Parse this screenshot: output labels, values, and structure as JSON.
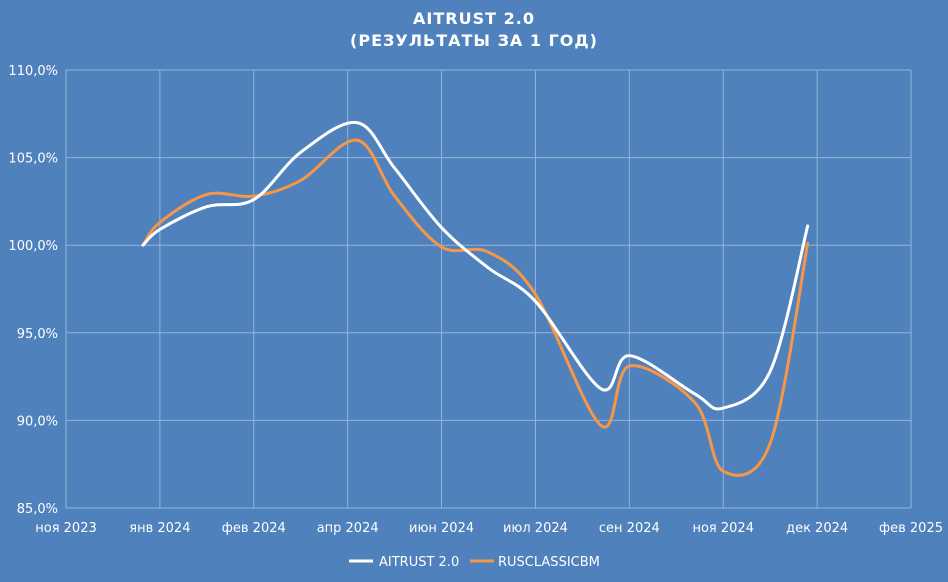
{
  "chart_data": {
    "type": "line",
    "title": "AITRUST 2.0",
    "subtitle": "(РЕЗУЛЬТАТЫ ЗА 1 ГОД)",
    "xlabel": "",
    "ylabel": "",
    "grid": true,
    "legend_position": "bottom",
    "ylim": [
      85,
      110
    ],
    "yticks": [
      "85,0%",
      "90,0%",
      "95,0%",
      "100,0%",
      "105,0%",
      "110,0%"
    ],
    "xticks": [
      "ноя 2023",
      "янв 2024",
      "фев 2024",
      "апр 2024",
      "июн 2024",
      "июл 2024",
      "сен 2024",
      "ноя 2024",
      "дек 2024",
      "фев 2025"
    ],
    "series": [
      {
        "name": "AITRUST 2.0",
        "color": "#ffffff",
        "x": [
          0.82,
          1.0,
          1.5,
          2.0,
          2.5,
          3.1,
          3.5,
          4.0,
          4.5,
          5.0,
          5.7,
          6.0,
          6.7,
          7.0,
          7.5,
          7.9
        ],
        "values": [
          100.0,
          100.9,
          102.2,
          102.6,
          105.3,
          107.0,
          104.4,
          101.0,
          98.7,
          96.8,
          91.8,
          93.7,
          91.5,
          90.7,
          92.8,
          101.1
        ]
      },
      {
        "name": "RUSCLASSICBM",
        "color": "#f79646",
        "x": [
          0.82,
          1.0,
          1.5,
          2.0,
          2.5,
          3.1,
          3.5,
          4.0,
          4.5,
          5.0,
          5.7,
          6.0,
          6.7,
          7.0,
          7.5,
          7.9
        ],
        "values": [
          100.0,
          101.3,
          102.9,
          102.8,
          103.7,
          106.0,
          102.8,
          99.9,
          99.6,
          97.2,
          89.7,
          93.1,
          91.0,
          87.1,
          88.7,
          100.1
        ]
      }
    ]
  }
}
